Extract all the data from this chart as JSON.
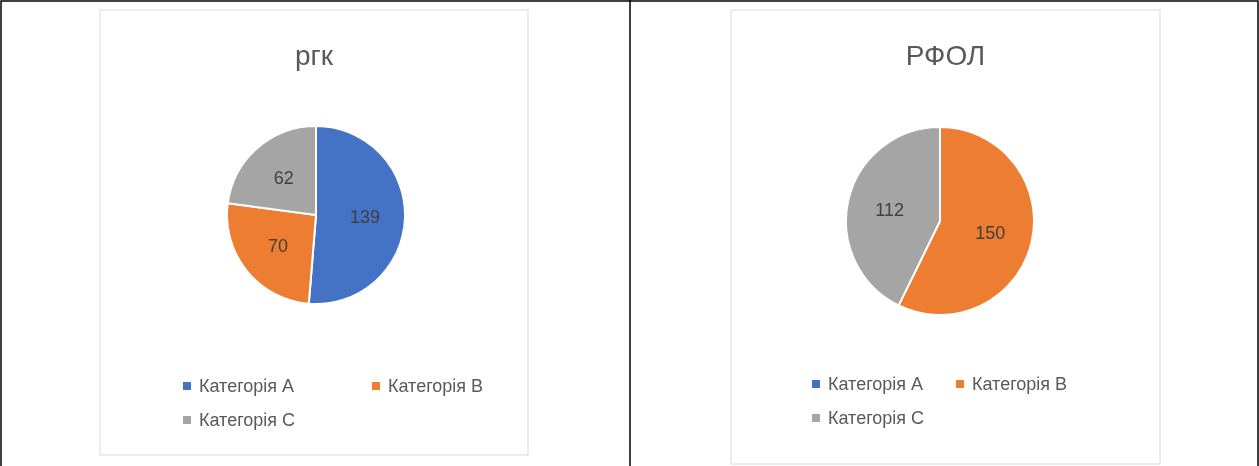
{
  "chart_data": [
    {
      "type": "pie",
      "title": "ргк",
      "categories": [
        "Категорія A",
        "Категорія B",
        "Категорія C"
      ],
      "values": [
        139,
        70,
        62
      ],
      "colors": [
        "#4472c4",
        "#ed7d31",
        "#a5a5a5"
      ],
      "value_labels": [
        "139",
        "70",
        "62"
      ],
      "legend": "bottom"
    },
    {
      "type": "pie",
      "title": "РФОЛ",
      "categories": [
        "Категорія A",
        "Категорія B",
        "Категорія C"
      ],
      "values": [
        0,
        150,
        112
      ],
      "colors": [
        "#4472c4",
        "#ed7d31",
        "#a5a5a5"
      ],
      "value_labels": [
        null,
        "150",
        "112"
      ],
      "legend": "bottom"
    }
  ]
}
